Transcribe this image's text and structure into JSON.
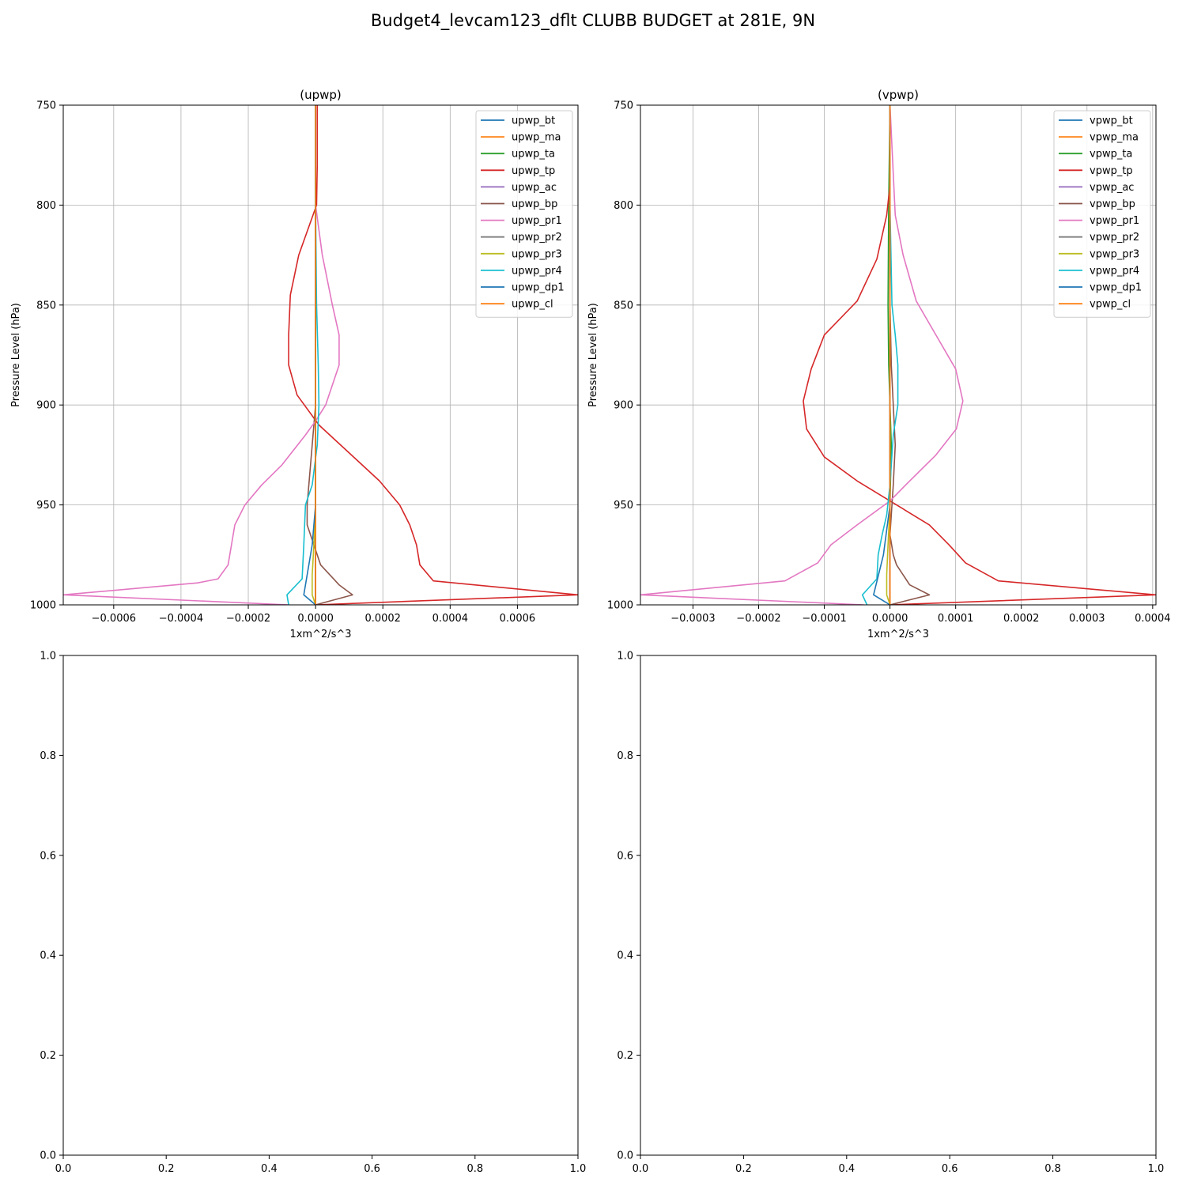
{
  "figure_title": "Budget4_levcam123_dflt CLUBB BUDGET at 281E, 9N",
  "colors": {
    "bt": "#1f77b4",
    "ma": "#ff7f0e",
    "ta": "#2ca02c",
    "tp": "#d62728",
    "ac": "#9467bd",
    "bp": "#8c564b",
    "pr1": "#e377c2",
    "pr2": "#7f7f7f",
    "pr3": "#bcbd22",
    "pr4": "#17becf",
    "dp1": "#1f77b4",
    "cl": "#ff7f0e",
    "grid": "#b0b0b0"
  },
  "chart_data": [
    {
      "type": "line",
      "title": "(upwp)",
      "xlabel": "1xm^2/s^3",
      "ylabel": "Pressure Level (hPa)",
      "xlim": [
        -0.00075,
        0.00078
      ],
      "ylim": [
        1000,
        750
      ],
      "grid": true,
      "legend_position": "top-right",
      "xticks": [
        -0.0006,
        -0.0004,
        -0.0002,
        0.0,
        0.0002,
        0.0004,
        0.0006
      ],
      "xtick_labels": [
        "−0.0006",
        "−0.0004",
        "−0.0002",
        "0.0000",
        "0.0002",
        "0.0004",
        "0.0006"
      ],
      "yticks": [
        750,
        800,
        850,
        900,
        950,
        1000
      ],
      "ytick_labels": [
        "750",
        "800",
        "850",
        "900",
        "950",
        "1000"
      ],
      "series": [
        {
          "name": "upwp_bt",
          "color_key": "bt",
          "x": [
            0,
            0,
            0,
            0,
            0,
            0,
            0,
            0,
            0,
            0,
            0
          ],
          "y": [
            750,
            800,
            850,
            880,
            900,
            920,
            950,
            970,
            985,
            995,
            1000
          ]
        },
        {
          "name": "upwp_ma",
          "color_key": "ma",
          "x": [
            0,
            0,
            0,
            0,
            0,
            0,
            0,
            0,
            0,
            0,
            0
          ],
          "y": [
            750,
            800,
            850,
            880,
            900,
            920,
            950,
            970,
            985,
            995,
            1000
          ]
        },
        {
          "name": "upwp_ta",
          "color_key": "ta",
          "x": [
            0,
            0,
            0,
            0,
            0,
            0,
            0,
            0,
            0,
            0,
            0
          ],
          "y": [
            750,
            800,
            850,
            880,
            900,
            920,
            950,
            970,
            985,
            995,
            1000
          ]
        },
        {
          "name": "upwp_tp",
          "color_key": "tp",
          "x": [
            5e-06,
            5e-06,
            3e-06,
            -5e-05,
            -7.5e-05,
            -8e-05,
            -8e-05,
            -5.5e-05,
            1e-05,
            0.00019,
            0.00025,
            0.00028,
            0.0003,
            0.00031,
            0.00035,
            0.00078,
            0.0
          ],
          "y": [
            750,
            780,
            800,
            825,
            845,
            865,
            880,
            895,
            910,
            938,
            950,
            960,
            970,
            980,
            988,
            995,
            1000
          ]
        },
        {
          "name": "upwp_ac",
          "color_key": "ac",
          "x": [
            0,
            0,
            0,
            0,
            0,
            0,
            0,
            0,
            0,
            0,
            0
          ],
          "y": [
            750,
            800,
            850,
            880,
            900,
            920,
            950,
            970,
            985,
            995,
            1000
          ]
        },
        {
          "name": "upwp_bp",
          "color_key": "bp",
          "x": [
            0,
            0,
            0,
            0,
            0,
            -1e-05,
            -2.5e-05,
            -2.5e-05,
            -5e-06,
            1.5e-05,
            7e-05,
            0.00011,
            0.0
          ],
          "y": [
            750,
            800,
            850,
            880,
            900,
            920,
            950,
            960,
            970,
            980,
            990,
            995,
            1000
          ]
        },
        {
          "name": "upwp_pr1",
          "color_key": "pr1",
          "x": [
            0.0,
            0.0,
            2e-05,
            5e-05,
            7e-05,
            7e-05,
            3e-05,
            0.0,
            -3e-05,
            -0.0001,
            -0.00016,
            -0.00021,
            -0.00024,
            -0.00025,
            -0.00026,
            -0.00029,
            -0.00035,
            -0.00075,
            -8e-05
          ],
          "y": [
            750,
            800,
            825,
            850,
            865,
            880,
            900,
            908,
            915,
            930,
            940,
            950,
            960,
            970,
            980,
            987,
            989,
            995,
            1000
          ]
        },
        {
          "name": "upwp_pr2",
          "color_key": "pr2",
          "x": [
            0,
            0,
            0,
            0,
            0,
            0,
            0,
            0,
            0,
            0,
            0
          ],
          "y": [
            750,
            800,
            850,
            880,
            900,
            920,
            950,
            970,
            985,
            995,
            1000
          ]
        },
        {
          "name": "upwp_pr3",
          "color_key": "pr3",
          "x": [
            0.0,
            0.0,
            0.0,
            0.0,
            0.0,
            0.0,
            0.0,
            -5e-06,
            -1e-05,
            -1e-05,
            0.0
          ],
          "y": [
            750,
            800,
            850,
            880,
            900,
            920,
            950,
            970,
            985,
            995,
            1000
          ]
        },
        {
          "name": "upwp_pr4",
          "color_key": "pr4",
          "x": [
            0.0,
            0.0,
            3e-06,
            8e-06,
            1e-05,
            5e-06,
            -1e-05,
            -3e-05,
            -3.5e-05,
            -4e-05,
            -8.5e-05,
            -8e-05
          ],
          "y": [
            750,
            800,
            850,
            880,
            900,
            920,
            940,
            950,
            970,
            987,
            995,
            1000
          ]
        },
        {
          "name": "upwp_dp1",
          "color_key": "dp1",
          "x": [
            0,
            0,
            0,
            0,
            0,
            0,
            0,
            -1e-05,
            -3.5e-05,
            0.0
          ],
          "y": [
            750,
            800,
            850,
            880,
            900,
            920,
            950,
            970,
            995,
            1000
          ]
        },
        {
          "name": "upwp_cl",
          "color_key": "cl",
          "x": [
            0,
            0,
            0,
            0,
            0,
            0,
            0,
            0,
            0,
            0,
            0
          ],
          "y": [
            750,
            800,
            850,
            880,
            900,
            920,
            950,
            970,
            985,
            995,
            1000
          ]
        }
      ]
    },
    {
      "type": "line",
      "title": "(vpwp)",
      "xlabel": "1xm^2/s^3",
      "ylabel": "Pressure Level (hPa)",
      "xlim": [
        -0.00038,
        0.000405
      ],
      "ylim": [
        1000,
        750
      ],
      "grid": true,
      "legend_position": "top-right",
      "xticks": [
        -0.0003,
        -0.0002,
        -0.0001,
        0.0,
        0.0001,
        0.0002,
        0.0003,
        0.0004
      ],
      "xtick_labels": [
        "−0.0003",
        "−0.0002",
        "−0.0001",
        "0.0000",
        "0.0001",
        "0.0002",
        "0.0003",
        "0.0004"
      ],
      "yticks": [
        750,
        800,
        850,
        900,
        950,
        1000
      ],
      "ytick_labels": [
        "750",
        "800",
        "850",
        "900",
        "950",
        "1000"
      ],
      "series": [
        {
          "name": "vpwp_bt",
          "color_key": "bt",
          "x": [
            0,
            0,
            0,
            0,
            0,
            0,
            0,
            0,
            0,
            0,
            0
          ],
          "y": [
            750,
            800,
            850,
            880,
            900,
            920,
            950,
            970,
            985,
            995,
            1000
          ]
        },
        {
          "name": "vpwp_ma",
          "color_key": "ma",
          "x": [
            0,
            0,
            0,
            0,
            0,
            0,
            0,
            0,
            0,
            0,
            0
          ],
          "y": [
            750,
            800,
            850,
            880,
            900,
            920,
            950,
            970,
            985,
            995,
            1000
          ]
        },
        {
          "name": "vpwp_ta",
          "color_key": "ta",
          "x": [
            0.0,
            -2e-06,
            -3e-06,
            -2e-06,
            0.0,
            2e-06,
            0.0,
            0.0,
            0.0
          ],
          "y": [
            750,
            800,
            850,
            880,
            900,
            920,
            950,
            985,
            1000
          ]
        },
        {
          "name": "vpwp_tp",
          "color_key": "tp",
          "x": [
            0.0,
            0.0,
            -5e-06,
            -2e-05,
            -5e-05,
            -0.0001,
            -0.00012,
            -0.000132,
            -0.000127,
            -0.0001,
            -5e-05,
            1e-05,
            6e-05,
            9e-05,
            0.000115,
            0.000165,
            0.000405,
            0.0
          ],
          "y": [
            750,
            790,
            805,
            827,
            848,
            865,
            882,
            898,
            912,
            926,
            938,
            950,
            960,
            970,
            979,
            988,
            995,
            1000
          ]
        },
        {
          "name": "vpwp_ac",
          "color_key": "ac",
          "x": [
            0,
            0,
            0,
            0,
            0,
            0,
            0,
            0,
            0,
            0,
            0
          ],
          "y": [
            750,
            800,
            850,
            880,
            900,
            920,
            950,
            970,
            985,
            995,
            1000
          ]
        },
        {
          "name": "vpwp_bp",
          "color_key": "bp",
          "x": [
            0.0,
            0.0,
            0.0,
            2e-06,
            5e-06,
            8e-06,
            5e-06,
            0.0,
            5e-06,
            1e-05,
            3e-05,
            6e-05,
            0.0
          ],
          "y": [
            750,
            800,
            850,
            880,
            900,
            920,
            940,
            965,
            975,
            980,
            990,
            995,
            1000
          ]
        },
        {
          "name": "vpwp_pr1",
          "color_key": "pr1",
          "x": [
            0.0,
            8e-06,
            2e-05,
            4e-05,
            7e-05,
            0.0001,
            0.000111,
            0.000101,
            7e-05,
            3e-05,
            0.0,
            -5e-05,
            -9e-05,
            -0.00011,
            -0.00016,
            -0.00038,
            -4e-05
          ],
          "y": [
            750,
            805,
            825,
            848,
            865,
            882,
            898,
            912,
            925,
            938,
            948,
            960,
            970,
            979,
            988,
            995,
            1000
          ]
        },
        {
          "name": "vpwp_pr2",
          "color_key": "pr2",
          "x": [
            0,
            0,
            0,
            0,
            0,
            0,
            0,
            0,
            0,
            0,
            0
          ],
          "y": [
            750,
            800,
            850,
            880,
            900,
            920,
            950,
            970,
            985,
            995,
            1000
          ]
        },
        {
          "name": "vpwp_pr3",
          "color_key": "pr3",
          "x": [
            0.0,
            0.0,
            0.0,
            0.0,
            0.0,
            0.0,
            0.0,
            -3e-06,
            -5e-06,
            -5e-06,
            0.0
          ],
          "y": [
            750,
            800,
            850,
            880,
            900,
            920,
            950,
            970,
            985,
            995,
            1000
          ]
        },
        {
          "name": "vpwp_pr4",
          "color_key": "pr4",
          "x": [
            0.0,
            0.0,
            3e-06,
            8e-06,
            1.2e-05,
            1.2e-05,
            5e-06,
            0.0,
            -5e-06,
            -1.2e-05,
            -1.8e-05,
            -2e-05,
            -4.2e-05,
            -3.5e-05
          ],
          "y": [
            750,
            800,
            850,
            865,
            880,
            900,
            915,
            940,
            955,
            965,
            975,
            987,
            995,
            1000
          ]
        },
        {
          "name": "vpwp_dp1",
          "color_key": "dp1",
          "x": [
            0,
            0,
            0,
            0,
            0,
            0,
            0,
            -1e-05,
            -2.5e-05,
            0.0
          ],
          "y": [
            750,
            800,
            850,
            880,
            900,
            920,
            950,
            975,
            995,
            1000
          ]
        },
        {
          "name": "vpwp_cl",
          "color_key": "cl",
          "x": [
            0,
            0,
            0,
            0,
            0,
            0,
            0,
            0,
            0,
            0,
            0
          ],
          "y": [
            750,
            800,
            850,
            880,
            900,
            920,
            950,
            970,
            985,
            995,
            1000
          ]
        }
      ]
    },
    {
      "type": "line",
      "title": "",
      "xlim": [
        0,
        1
      ],
      "ylim": [
        0,
        1
      ],
      "grid": false,
      "xticks": [
        0.0,
        0.2,
        0.4,
        0.6,
        0.8,
        1.0
      ],
      "xtick_labels": [
        "0.0",
        "0.2",
        "0.4",
        "0.6",
        "0.8",
        "1.0"
      ],
      "yticks": [
        0.0,
        0.2,
        0.4,
        0.6,
        0.8,
        1.0
      ],
      "ytick_labels": [
        "0.0",
        "0.2",
        "0.4",
        "0.6",
        "0.8",
        "1.0"
      ],
      "series": []
    },
    {
      "type": "line",
      "title": "",
      "xlim": [
        0,
        1
      ],
      "ylim": [
        0,
        1
      ],
      "grid": false,
      "xticks": [
        0.0,
        0.2,
        0.4,
        0.6,
        0.8,
        1.0
      ],
      "xtick_labels": [
        "0.0",
        "0.2",
        "0.4",
        "0.6",
        "0.8",
        "1.0"
      ],
      "yticks": [
        0.0,
        0.2,
        0.4,
        0.6,
        0.8,
        1.0
      ],
      "ytick_labels": [
        "0.0",
        "0.2",
        "0.4",
        "0.6",
        "0.8",
        "1.0"
      ],
      "series": []
    }
  ]
}
